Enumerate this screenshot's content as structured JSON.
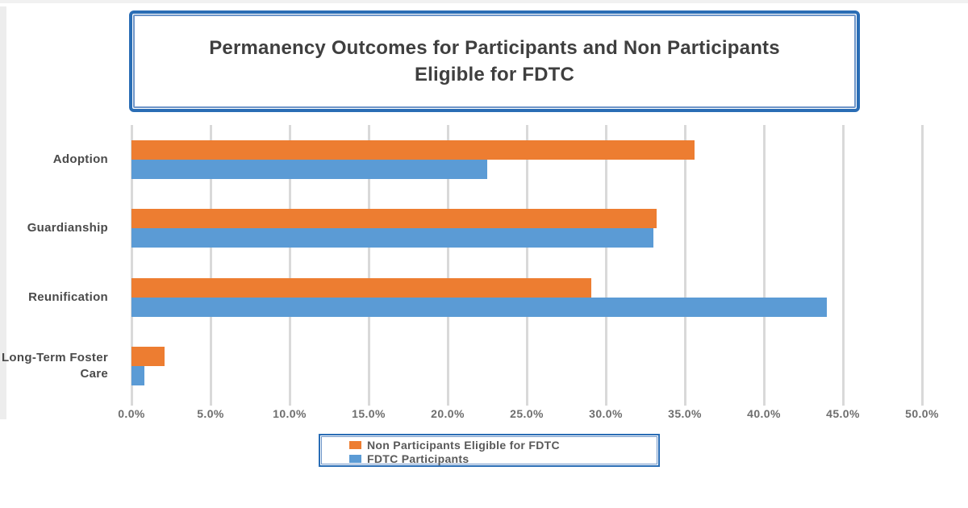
{
  "title": {
    "line1": "Permanency Outcomes for Participants and Non Participants",
    "line2": "Eligible for FDTC"
  },
  "legend": {
    "items": [
      {
        "label": "Non Participants Eligible for FDTC",
        "color": "#ED7D31"
      },
      {
        "label": "FDTC Participants",
        "color": "#5B9BD5"
      }
    ]
  },
  "chart_data": {
    "type": "bar",
    "orientation": "horizontal",
    "title": "Permanency Outcomes for Participants and Non Participants Eligible for FDTC",
    "categories": [
      "Adoption",
      "Guardianship",
      "Reunification",
      "Long-Term Foster Care"
    ],
    "series": [
      {
        "name": "Non Participants Eligible for FDTC",
        "color": "#ED7D31",
        "values": [
          35.6,
          33.2,
          29.1,
          2.1
        ]
      },
      {
        "name": "FDTC Participants",
        "color": "#5B9BD5",
        "values": [
          22.5,
          33.0,
          44.0,
          0.8
        ]
      }
    ],
    "x_axis": {
      "min": 0,
      "max": 50,
      "step": 5,
      "unit": "%",
      "tick_labels": [
        "0.0%",
        "5.0%",
        "10.0%",
        "15.0%",
        "20.0%",
        "25.0%",
        "30.0%",
        "35.0%",
        "40.0%",
        "45.0%",
        "50.0%"
      ]
    },
    "grid": true,
    "gridline_color": "#D9D9D9",
    "legend_position": "bottom",
    "accent_border_color": "#2A6DB5"
  }
}
